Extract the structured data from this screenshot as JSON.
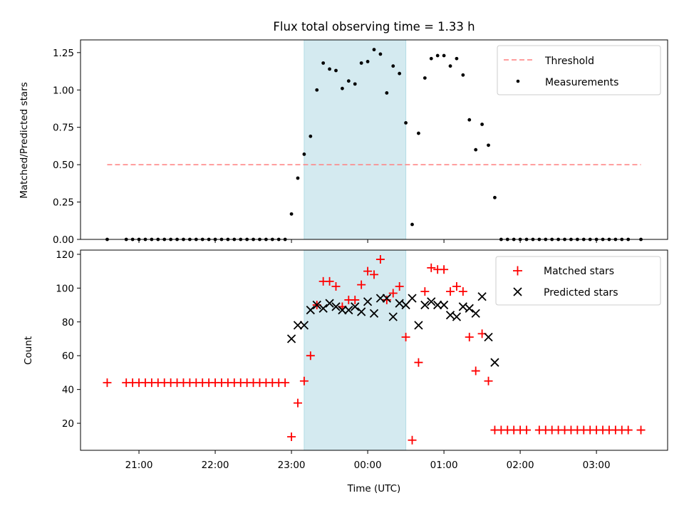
{
  "chart_data": [
    {
      "type": "scatter",
      "title": "Flux total observing time = 1.33 h",
      "ylabel": "Matched/Predicted stars",
      "ylim": [
        0,
        1.335
      ],
      "yticks": [
        "0.00",
        "0.25",
        "0.50",
        "0.75",
        "1.00",
        "1.25"
      ],
      "shaded_interval": [
        "23:10",
        "00:30"
      ],
      "shade_color": "#d4eaf0",
      "legend": {
        "placement": "top-right",
        "entries": [
          "Threshold",
          "Measurements"
        ]
      },
      "threshold": {
        "name": "Threshold",
        "value": 0.5,
        "x_range": [
          "20:35",
          "03:35"
        ],
        "color": "#ff7f7f",
        "style": "dashed"
      },
      "series": [
        {
          "name": "Measurements",
          "color": "#000000",
          "points": [
            [
              "20:35",
              0
            ],
            [
              "20:50",
              0
            ],
            [
              "20:55",
              0
            ],
            [
              "21:00",
              0
            ],
            [
              "21:05",
              0
            ],
            [
              "21:10",
              0
            ],
            [
              "21:15",
              0
            ],
            [
              "21:20",
              0
            ],
            [
              "21:25",
              0
            ],
            [
              "21:30",
              0
            ],
            [
              "21:35",
              0
            ],
            [
              "21:40",
              0
            ],
            [
              "21:45",
              0
            ],
            [
              "21:50",
              0
            ],
            [
              "21:55",
              0
            ],
            [
              "22:00",
              0
            ],
            [
              "22:05",
              0
            ],
            [
              "22:10",
              0
            ],
            [
              "22:15",
              0
            ],
            [
              "22:20",
              0
            ],
            [
              "22:25",
              0
            ],
            [
              "22:30",
              0
            ],
            [
              "22:35",
              0
            ],
            [
              "22:40",
              0
            ],
            [
              "22:45",
              0
            ],
            [
              "22:50",
              0
            ],
            [
              "22:55",
              0
            ],
            [
              "23:00",
              0.17
            ],
            [
              "23:05",
              0.41
            ],
            [
              "23:10",
              0.57
            ],
            [
              "23:15",
              0.69
            ],
            [
              "23:20",
              1.0
            ],
            [
              "23:25",
              1.18
            ],
            [
              "23:30",
              1.14
            ],
            [
              "23:35",
              1.13
            ],
            [
              "23:40",
              1.01
            ],
            [
              "23:45",
              1.06
            ],
            [
              "23:50",
              1.04
            ],
            [
              "23:55",
              1.18
            ],
            [
              "00:00",
              1.19
            ],
            [
              "00:05",
              1.27
            ],
            [
              "00:10",
              1.24
            ],
            [
              "00:15",
              0.98
            ],
            [
              "00:20",
              1.16
            ],
            [
              "00:25",
              1.11
            ],
            [
              "00:30",
              0.78
            ],
            [
              "00:35",
              0.1
            ],
            [
              "00:40",
              0.71
            ],
            [
              "00:45",
              1.08
            ],
            [
              "00:50",
              1.21
            ],
            [
              "00:55",
              1.23
            ],
            [
              "01:00",
              1.23
            ],
            [
              "01:05",
              1.16
            ],
            [
              "01:10",
              1.21
            ],
            [
              "01:15",
              1.1
            ],
            [
              "01:20",
              0.8
            ],
            [
              "01:25",
              0.6
            ],
            [
              "01:30",
              0.77
            ],
            [
              "01:35",
              0.63
            ],
            [
              "01:40",
              0.28
            ],
            [
              "01:45",
              0
            ],
            [
              "01:50",
              0
            ],
            [
              "01:55",
              0
            ],
            [
              "02:00",
              0
            ],
            [
              "02:05",
              0
            ],
            [
              "02:10",
              0
            ],
            [
              "02:15",
              0
            ],
            [
              "02:20",
              0
            ],
            [
              "02:25",
              0
            ],
            [
              "02:30",
              0
            ],
            [
              "02:35",
              0
            ],
            [
              "02:40",
              0
            ],
            [
              "02:45",
              0
            ],
            [
              "02:50",
              0
            ],
            [
              "02:55",
              0
            ],
            [
              "03:00",
              0
            ],
            [
              "03:05",
              0
            ],
            [
              "03:10",
              0
            ],
            [
              "03:15",
              0
            ],
            [
              "03:20",
              0
            ],
            [
              "03:25",
              0
            ],
            [
              "03:35",
              0
            ]
          ]
        }
      ]
    },
    {
      "type": "scatter",
      "xlabel": "Time (UTC)",
      "ylabel": "Count",
      "ylim": [
        4,
        122.5
      ],
      "yticks": [
        "20",
        "40",
        "60",
        "80",
        "100",
        "120"
      ],
      "xticks": [
        "21:00",
        "22:00",
        "23:00",
        "00:00",
        "01:00",
        "02:00",
        "03:00"
      ],
      "shaded_interval": [
        "23:10",
        "00:30"
      ],
      "legend": {
        "placement": "top-right",
        "entries": [
          "Matched stars",
          "Predicted stars"
        ]
      },
      "series": [
        {
          "name": "Matched stars",
          "marker": "plus",
          "color": "#ff0000",
          "points": [
            [
              "20:35",
              44
            ],
            [
              "20:50",
              44
            ],
            [
              "20:55",
              44
            ],
            [
              "21:00",
              44
            ],
            [
              "21:05",
              44
            ],
            [
              "21:10",
              44
            ],
            [
              "21:15",
              44
            ],
            [
              "21:20",
              44
            ],
            [
              "21:25",
              44
            ],
            [
              "21:30",
              44
            ],
            [
              "21:35",
              44
            ],
            [
              "21:40",
              44
            ],
            [
              "21:45",
              44
            ],
            [
              "21:50",
              44
            ],
            [
              "21:55",
              44
            ],
            [
              "22:00",
              44
            ],
            [
              "22:05",
              44
            ],
            [
              "22:10",
              44
            ],
            [
              "22:15",
              44
            ],
            [
              "22:20",
              44
            ],
            [
              "22:25",
              44
            ],
            [
              "22:30",
              44
            ],
            [
              "22:35",
              44
            ],
            [
              "22:40",
              44
            ],
            [
              "22:45",
              44
            ],
            [
              "22:50",
              44
            ],
            [
              "22:55",
              44
            ],
            [
              "23:00",
              12
            ],
            [
              "23:05",
              32
            ],
            [
              "23:10",
              45
            ],
            [
              "23:15",
              60
            ],
            [
              "23:20",
              90
            ],
            [
              "23:25",
              104
            ],
            [
              "23:30",
              104
            ],
            [
              "23:35",
              101
            ],
            [
              "23:40",
              89
            ],
            [
              "23:45",
              93
            ],
            [
              "23:50",
              93
            ],
            [
              "23:55",
              102
            ],
            [
              "00:00",
              110
            ],
            [
              "00:05",
              108
            ],
            [
              "00:10",
              117
            ],
            [
              "00:15",
              93
            ],
            [
              "00:20",
              97
            ],
            [
              "00:25",
              101
            ],
            [
              "00:30",
              71
            ],
            [
              "00:35",
              10
            ],
            [
              "00:40",
              56
            ],
            [
              "00:45",
              98
            ],
            [
              "00:50",
              112
            ],
            [
              "00:55",
              111
            ],
            [
              "01:00",
              111
            ],
            [
              "01:05",
              98
            ],
            [
              "01:10",
              101
            ],
            [
              "01:15",
              98
            ],
            [
              "01:20",
              71
            ],
            [
              "01:25",
              51
            ],
            [
              "01:30",
              73
            ],
            [
              "01:35",
              45
            ],
            [
              "01:40",
              16
            ],
            [
              "01:45",
              16
            ],
            [
              "01:50",
              16
            ],
            [
              "01:55",
              16
            ],
            [
              "02:00",
              16
            ],
            [
              "02:05",
              16
            ],
            [
              "02:15",
              16
            ],
            [
              "02:20",
              16
            ],
            [
              "02:25",
              16
            ],
            [
              "02:30",
              16
            ],
            [
              "02:35",
              16
            ],
            [
              "02:40",
              16
            ],
            [
              "02:45",
              16
            ],
            [
              "02:50",
              16
            ],
            [
              "02:55",
              16
            ],
            [
              "03:00",
              16
            ],
            [
              "03:05",
              16
            ],
            [
              "03:10",
              16
            ],
            [
              "03:15",
              16
            ],
            [
              "03:20",
              16
            ],
            [
              "03:25",
              16
            ],
            [
              "03:35",
              16
            ]
          ]
        },
        {
          "name": "Predicted stars",
          "marker": "x",
          "color": "#000000",
          "points": [
            [
              "23:00",
              70
            ],
            [
              "23:05",
              78
            ],
            [
              "23:10",
              78
            ],
            [
              "23:15",
              87
            ],
            [
              "23:20",
              90
            ],
            [
              "23:25",
              88
            ],
            [
              "23:30",
              91
            ],
            [
              "23:35",
              89
            ],
            [
              "23:40",
              87
            ],
            [
              "23:45",
              87
            ],
            [
              "23:50",
              89
            ],
            [
              "23:55",
              86
            ],
            [
              "00:00",
              92
            ],
            [
              "00:05",
              85
            ],
            [
              "00:10",
              94
            ],
            [
              "00:15",
              94
            ],
            [
              "00:20",
              83
            ],
            [
              "00:25",
              91
            ],
            [
              "00:30",
              90
            ],
            [
              "00:35",
              94
            ],
            [
              "00:40",
              78
            ],
            [
              "00:45",
              90
            ],
            [
              "00:50",
              92
            ],
            [
              "00:55",
              90
            ],
            [
              "01:00",
              90
            ],
            [
              "01:05",
              84
            ],
            [
              "01:10",
              83
            ],
            [
              "01:15",
              89
            ],
            [
              "01:20",
              88
            ],
            [
              "01:25",
              85
            ],
            [
              "01:30",
              95
            ],
            [
              "01:35",
              71
            ],
            [
              "01:40",
              56
            ]
          ]
        }
      ]
    }
  ]
}
